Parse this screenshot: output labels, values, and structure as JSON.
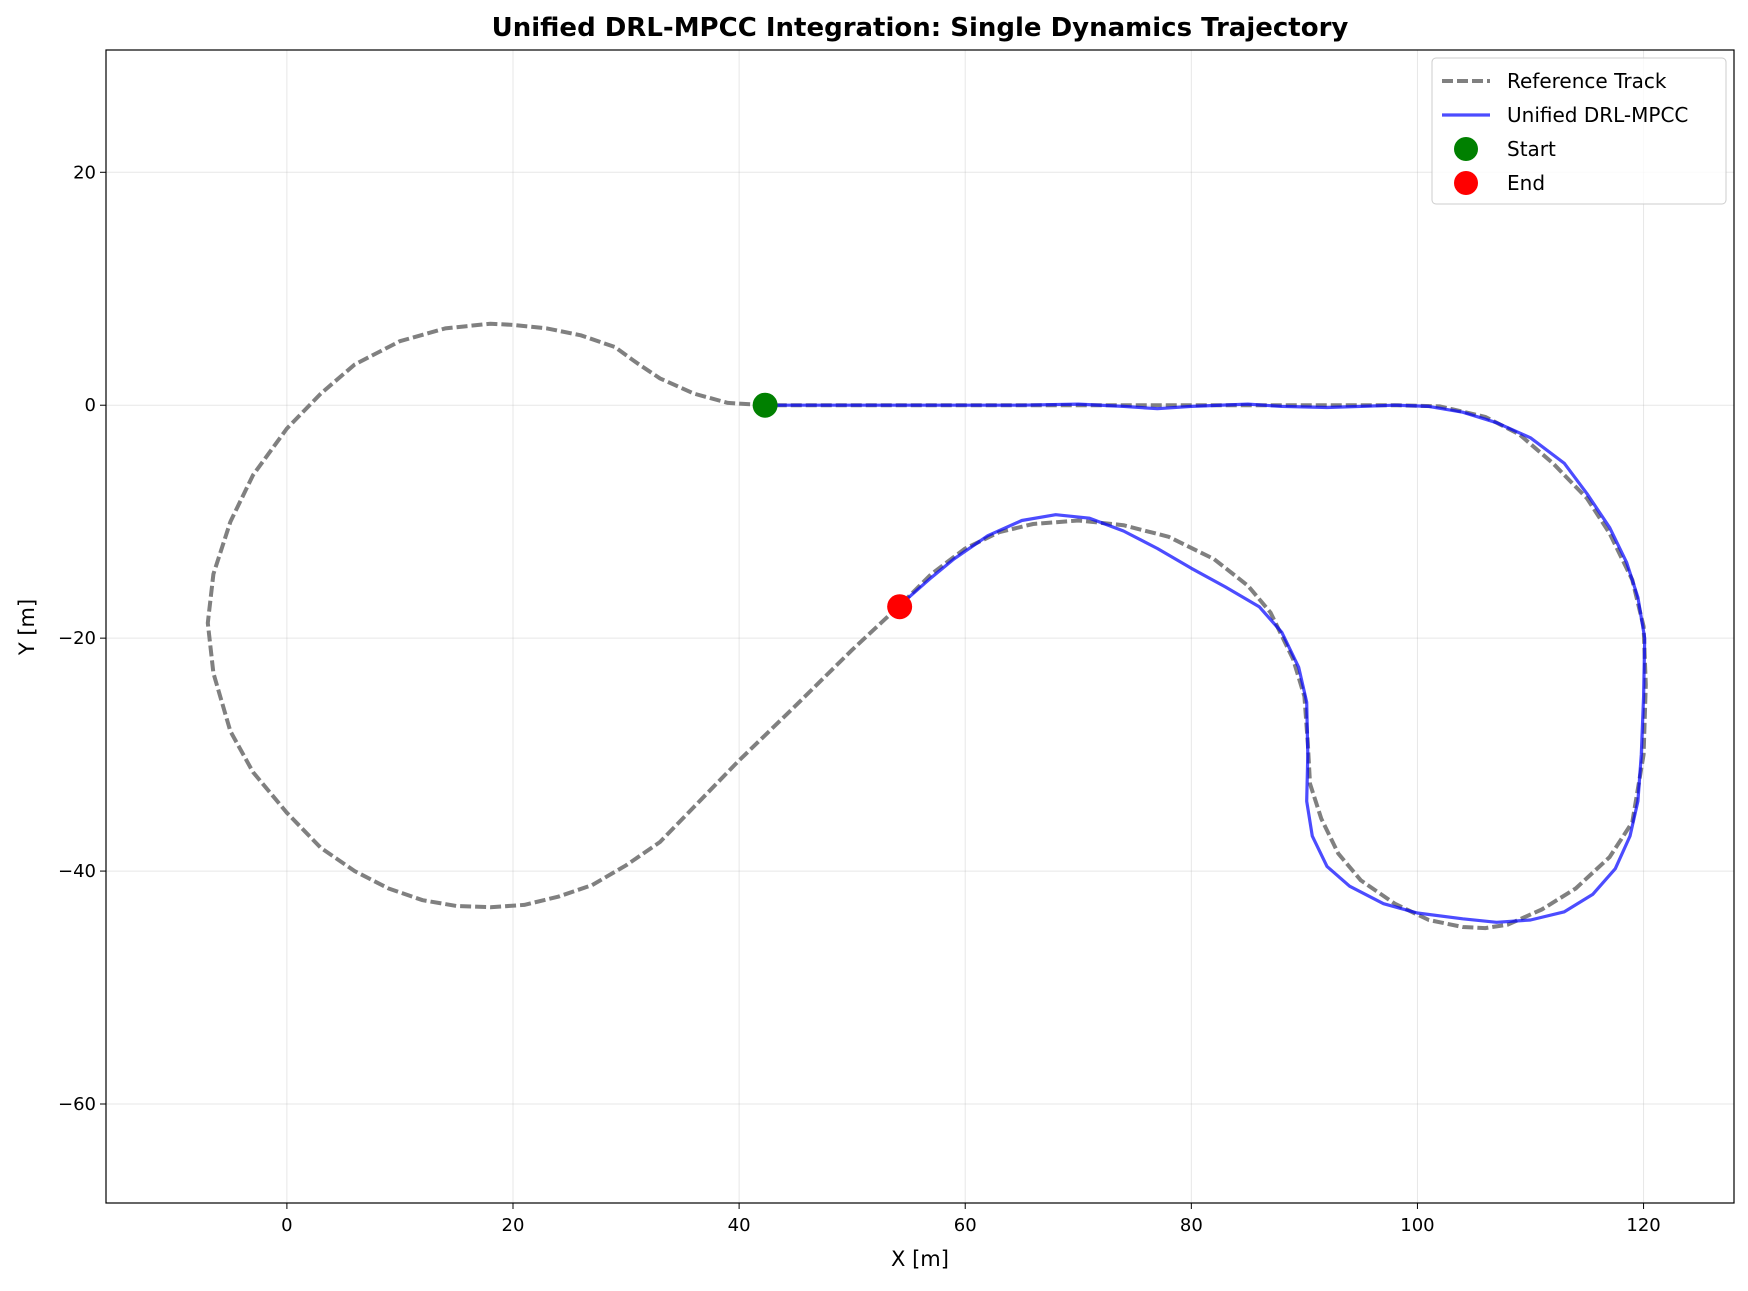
{
  "chart_data": {
    "type": "line",
    "title": "Unified DRL-MPCC Integration: Single Dynamics Trajectory",
    "xlabel": "X [m]",
    "ylabel": "Y [m]",
    "xlim": [
      -16,
      128
    ],
    "ylim": [
      -68.5,
      30.5
    ],
    "xticks": [
      0,
      20,
      40,
      60,
      80,
      100,
      120
    ],
    "yticks": [
      20,
      0,
      -20,
      -40,
      -60
    ],
    "xtick_labels": [
      "0",
      "20",
      "40",
      "60",
      "80",
      "100",
      "120"
    ],
    "ytick_labels": [
      "20",
      "0",
      "−20",
      "−40",
      "−60"
    ],
    "grid": true,
    "legend_position": "top-right",
    "series": [
      {
        "name": "Reference Track",
        "style": "dashed",
        "color": "#808080",
        "points": [
          [
            42.3,
            0
          ],
          [
            39,
            0.2
          ],
          [
            36,
            1
          ],
          [
            33,
            2.3
          ],
          [
            31,
            3.6
          ],
          [
            29,
            5
          ],
          [
            26,
            6
          ],
          [
            23,
            6.6
          ],
          [
            20,
            6.9
          ],
          [
            18,
            7
          ],
          [
            14,
            6.6
          ],
          [
            10,
            5.5
          ],
          [
            6,
            3.5
          ],
          [
            3,
            1
          ],
          [
            0,
            -2
          ],
          [
            -3,
            -6
          ],
          [
            -5,
            -10
          ],
          [
            -6.5,
            -14.5
          ],
          [
            -7,
            -18.7
          ],
          [
            -6.5,
            -23
          ],
          [
            -5,
            -28
          ],
          [
            -3,
            -31.5
          ],
          [
            0,
            -35
          ],
          [
            3,
            -38
          ],
          [
            6,
            -40
          ],
          [
            9,
            -41.5
          ],
          [
            12,
            -42.5
          ],
          [
            15,
            -43
          ],
          [
            18,
            -43.1
          ],
          [
            21,
            -42.9
          ],
          [
            24,
            -42.2
          ],
          [
            27,
            -41.2
          ],
          [
            30,
            -39.5
          ],
          [
            33,
            -37.5
          ],
          [
            36,
            -34.5
          ],
          [
            40,
            -30.5
          ],
          [
            45,
            -25.8
          ],
          [
            50,
            -21
          ],
          [
            54.2,
            -17.2
          ],
          [
            57,
            -14.5
          ],
          [
            60,
            -12.3
          ],
          [
            63,
            -10.9
          ],
          [
            66,
            -10.2
          ],
          [
            70,
            -9.9
          ],
          [
            74,
            -10.3
          ],
          [
            78,
            -11.3
          ],
          [
            82,
            -13.2
          ],
          [
            85,
            -15.5
          ],
          [
            87,
            -17.8
          ],
          [
            89,
            -21.8
          ],
          [
            90,
            -25
          ],
          [
            90.3,
            -29
          ],
          [
            90.5,
            -32.5
          ],
          [
            91.5,
            -35.5
          ],
          [
            93,
            -38.5
          ],
          [
            95,
            -40.8
          ],
          [
            98,
            -42.8
          ],
          [
            101,
            -44.2
          ],
          [
            104,
            -44.8
          ],
          [
            106,
            -44.9
          ],
          [
            108,
            -44.6
          ],
          [
            111,
            -43.3
          ],
          [
            114,
            -41.5
          ],
          [
            117,
            -38.8
          ],
          [
            119,
            -35.8
          ],
          [
            120,
            -30
          ],
          [
            120.2,
            -24
          ],
          [
            120,
            -19
          ],
          [
            119,
            -15
          ],
          [
            117,
            -11
          ],
          [
            115,
            -8
          ],
          [
            112,
            -5
          ],
          [
            109,
            -2.5
          ],
          [
            106,
            -1
          ],
          [
            102,
            -0.1
          ],
          [
            98,
            0
          ],
          [
            90,
            0
          ],
          [
            80,
            0
          ],
          [
            70,
            0
          ],
          [
            60,
            0
          ],
          [
            50,
            0
          ],
          [
            42.3,
            0
          ]
        ]
      },
      {
        "name": "Unified DRL-MPCC",
        "style": "solid",
        "color": "#0000ff",
        "points": [
          [
            42.3,
            0
          ],
          [
            50,
            0
          ],
          [
            60,
            0
          ],
          [
            65,
            0
          ],
          [
            70,
            0.1
          ],
          [
            74,
            -0.1
          ],
          [
            77,
            -0.3
          ],
          [
            80,
            -0.1
          ],
          [
            85,
            0.1
          ],
          [
            88,
            -0.1
          ],
          [
            92,
            -0.2
          ],
          [
            95,
            -0.1
          ],
          [
            98,
            0
          ],
          [
            101,
            -0.1
          ],
          [
            104,
            -0.6
          ],
          [
            107,
            -1.5
          ],
          [
            110,
            -2.8
          ],
          [
            113,
            -5
          ],
          [
            115,
            -7.6
          ],
          [
            117,
            -10.5
          ],
          [
            118.5,
            -13.5
          ],
          [
            119.5,
            -16.5
          ],
          [
            120.1,
            -20
          ],
          [
            120,
            -25
          ],
          [
            119.8,
            -30
          ],
          [
            119.5,
            -34
          ],
          [
            118.8,
            -37
          ],
          [
            117.5,
            -39.8
          ],
          [
            115.5,
            -42
          ],
          [
            113,
            -43.5
          ],
          [
            110,
            -44.2
          ],
          [
            107,
            -44.4
          ],
          [
            104,
            -44.1
          ],
          [
            100,
            -43.6
          ],
          [
            97,
            -42.8
          ],
          [
            94,
            -41.3
          ],
          [
            92,
            -39.6
          ],
          [
            90.7,
            -37
          ],
          [
            90.2,
            -34
          ],
          [
            90.3,
            -30
          ],
          [
            90.2,
            -25.5
          ],
          [
            89.5,
            -22.5
          ],
          [
            88,
            -19.5
          ],
          [
            86,
            -17.3
          ],
          [
            83,
            -15.6
          ],
          [
            80,
            -14
          ],
          [
            77,
            -12.3
          ],
          [
            74,
            -10.8
          ],
          [
            71,
            -9.7
          ],
          [
            68,
            -9.4
          ],
          [
            65,
            -9.9
          ],
          [
            62,
            -11.2
          ],
          [
            59,
            -13.2
          ],
          [
            57,
            -14.8
          ],
          [
            55,
            -16.5
          ],
          [
            54.2,
            -17.3
          ]
        ]
      }
    ],
    "markers": [
      {
        "name": "Start",
        "x": 42.3,
        "y": 0,
        "color": "#008000"
      },
      {
        "name": "End",
        "x": 54.2,
        "y": -17.3,
        "color": "#ff0000"
      }
    ]
  }
}
